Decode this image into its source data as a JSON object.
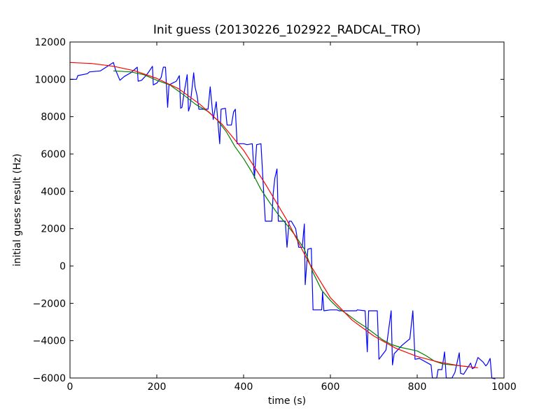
{
  "chart_data": {
    "type": "line",
    "title": "Init guess (20130226_102922_RADCAL_TRO)",
    "xlabel": "time (s)",
    "ylabel": "initial guess result (Hz)",
    "xlim": [
      0,
      1000
    ],
    "ylim": [
      -6000,
      12000
    ],
    "xticks": [
      0,
      200,
      400,
      600,
      800,
      1000
    ],
    "yticks": [
      -6000,
      -4000,
      -2000,
      0,
      2000,
      4000,
      6000,
      8000,
      10000,
      12000
    ],
    "grid": false,
    "legend": "none",
    "series": [
      {
        "color": "#0000ff",
        "points": [
          [
            0,
            10000
          ],
          [
            15,
            10000
          ],
          [
            18,
            10200
          ],
          [
            40,
            10300
          ],
          [
            45,
            10400
          ],
          [
            70,
            10450
          ],
          [
            100,
            10900
          ],
          [
            105,
            10500
          ],
          [
            115,
            9950
          ],
          [
            125,
            10150
          ],
          [
            140,
            10350
          ],
          [
            155,
            10650
          ],
          [
            157,
            9900
          ],
          [
            165,
            9950
          ],
          [
            175,
            10200
          ],
          [
            180,
            10350
          ],
          [
            190,
            10700
          ],
          [
            192,
            9700
          ],
          [
            200,
            9800
          ],
          [
            210,
            10100
          ],
          [
            215,
            10650
          ],
          [
            220,
            10650
          ],
          [
            225,
            8500
          ],
          [
            228,
            9700
          ],
          [
            245,
            9900
          ],
          [
            252,
            10200
          ],
          [
            255,
            8450
          ],
          [
            258,
            8500
          ],
          [
            263,
            9300
          ],
          [
            270,
            10250
          ],
          [
            273,
            8300
          ],
          [
            277,
            8600
          ],
          [
            285,
            10350
          ],
          [
            288,
            9600
          ],
          [
            293,
            9100
          ],
          [
            297,
            8400
          ],
          [
            300,
            8400
          ],
          [
            318,
            8400
          ],
          [
            323,
            9600
          ],
          [
            330,
            7850
          ],
          [
            337,
            8800
          ],
          [
            345,
            6550
          ],
          [
            348,
            8400
          ],
          [
            358,
            8450
          ],
          [
            362,
            7550
          ],
          [
            372,
            7550
          ],
          [
            377,
            8250
          ],
          [
            381,
            8400
          ],
          [
            385,
            6550
          ],
          [
            400,
            6550
          ],
          [
            408,
            6500
          ],
          [
            420,
            6550
          ],
          [
            425,
            4700
          ],
          [
            430,
            6500
          ],
          [
            440,
            6550
          ],
          [
            450,
            2400
          ],
          [
            465,
            2400
          ],
          [
            468,
            3850
          ],
          [
            472,
            4700
          ],
          [
            477,
            5200
          ],
          [
            480,
            2400
          ],
          [
            496,
            2400
          ],
          [
            500,
            1000
          ],
          [
            505,
            2400
          ],
          [
            510,
            2400
          ],
          [
            520,
            2000
          ],
          [
            527,
            1000
          ],
          [
            535,
            1000
          ],
          [
            540,
            2250
          ],
          [
            542,
            -1000
          ],
          [
            548,
            900
          ],
          [
            556,
            950
          ],
          [
            560,
            -2350
          ],
          [
            580,
            -2350
          ],
          [
            582,
            -1400
          ],
          [
            585,
            -2400
          ],
          [
            600,
            -2350
          ],
          [
            615,
            -2350
          ],
          [
            620,
            -2400
          ],
          [
            660,
            -2400
          ],
          [
            662,
            -2350
          ],
          [
            680,
            -2400
          ],
          [
            685,
            -4600
          ],
          [
            688,
            -2400
          ],
          [
            708,
            -2400
          ],
          [
            712,
            -5000
          ],
          [
            728,
            -4500
          ],
          [
            740,
            -2400
          ],
          [
            743,
            -5300
          ],
          [
            747,
            -4700
          ],
          [
            765,
            -4250
          ],
          [
            783,
            -3900
          ],
          [
            790,
            -2400
          ],
          [
            795,
            -5000
          ],
          [
            805,
            -4950
          ],
          [
            832,
            -5300
          ],
          [
            835,
            -6000
          ],
          [
            845,
            -6000
          ],
          [
            848,
            -5550
          ],
          [
            857,
            -5550
          ],
          [
            863,
            -4600
          ],
          [
            867,
            -6000
          ],
          [
            880,
            -6000
          ],
          [
            887,
            -5700
          ],
          [
            897,
            -4650
          ],
          [
            900,
            -5750
          ],
          [
            907,
            -5800
          ],
          [
            915,
            -5500
          ],
          [
            923,
            -5200
          ],
          [
            927,
            -5500
          ],
          [
            932,
            -5450
          ],
          [
            940,
            -4900
          ],
          [
            952,
            -5150
          ],
          [
            958,
            -5350
          ],
          [
            962,
            -5250
          ],
          [
            968,
            -4950
          ],
          [
            972,
            -6000
          ],
          [
            980,
            -6050
          ]
        ]
      },
      {
        "color": "#008000",
        "points": [
          [
            100,
            10450
          ],
          [
            140,
            10400
          ],
          [
            170,
            10250
          ],
          [
            200,
            9950
          ],
          [
            230,
            9700
          ],
          [
            260,
            9200
          ],
          [
            290,
            8650
          ],
          [
            320,
            8250
          ],
          [
            340,
            7800
          ],
          [
            360,
            7200
          ],
          [
            380,
            6400
          ],
          [
            400,
            5750
          ],
          [
            420,
            5000
          ],
          [
            440,
            4100
          ],
          [
            460,
            3400
          ],
          [
            480,
            2750
          ],
          [
            500,
            2200
          ],
          [
            520,
            1600
          ],
          [
            540,
            900
          ],
          [
            560,
            -350
          ],
          [
            580,
            -1300
          ],
          [
            600,
            -1850
          ],
          [
            620,
            -2300
          ],
          [
            640,
            -2600
          ],
          [
            660,
            -2950
          ],
          [
            680,
            -3250
          ],
          [
            700,
            -3600
          ],
          [
            720,
            -3950
          ],
          [
            740,
            -4200
          ],
          [
            760,
            -4350
          ],
          [
            780,
            -4450
          ],
          [
            800,
            -4550
          ],
          [
            820,
            -4800
          ],
          [
            840,
            -5100
          ],
          [
            860,
            -5250
          ],
          [
            880,
            -5300
          ],
          [
            900,
            -5350
          ],
          [
            920,
            -5400
          ]
        ]
      },
      {
        "color": "#ff0000",
        "points": [
          [
            0,
            10900
          ],
          [
            50,
            10850
          ],
          [
            100,
            10700
          ],
          [
            150,
            10450
          ],
          [
            200,
            10050
          ],
          [
            250,
            9500
          ],
          [
            300,
            8650
          ],
          [
            350,
            7600
          ],
          [
            400,
            6200
          ],
          [
            450,
            4400
          ],
          [
            500,
            2450
          ],
          [
            550,
            200
          ],
          [
            600,
            -1700
          ],
          [
            650,
            -2900
          ],
          [
            700,
            -3750
          ],
          [
            750,
            -4400
          ],
          [
            800,
            -4850
          ],
          [
            850,
            -5150
          ],
          [
            900,
            -5350
          ],
          [
            940,
            -5450
          ]
        ]
      }
    ]
  }
}
